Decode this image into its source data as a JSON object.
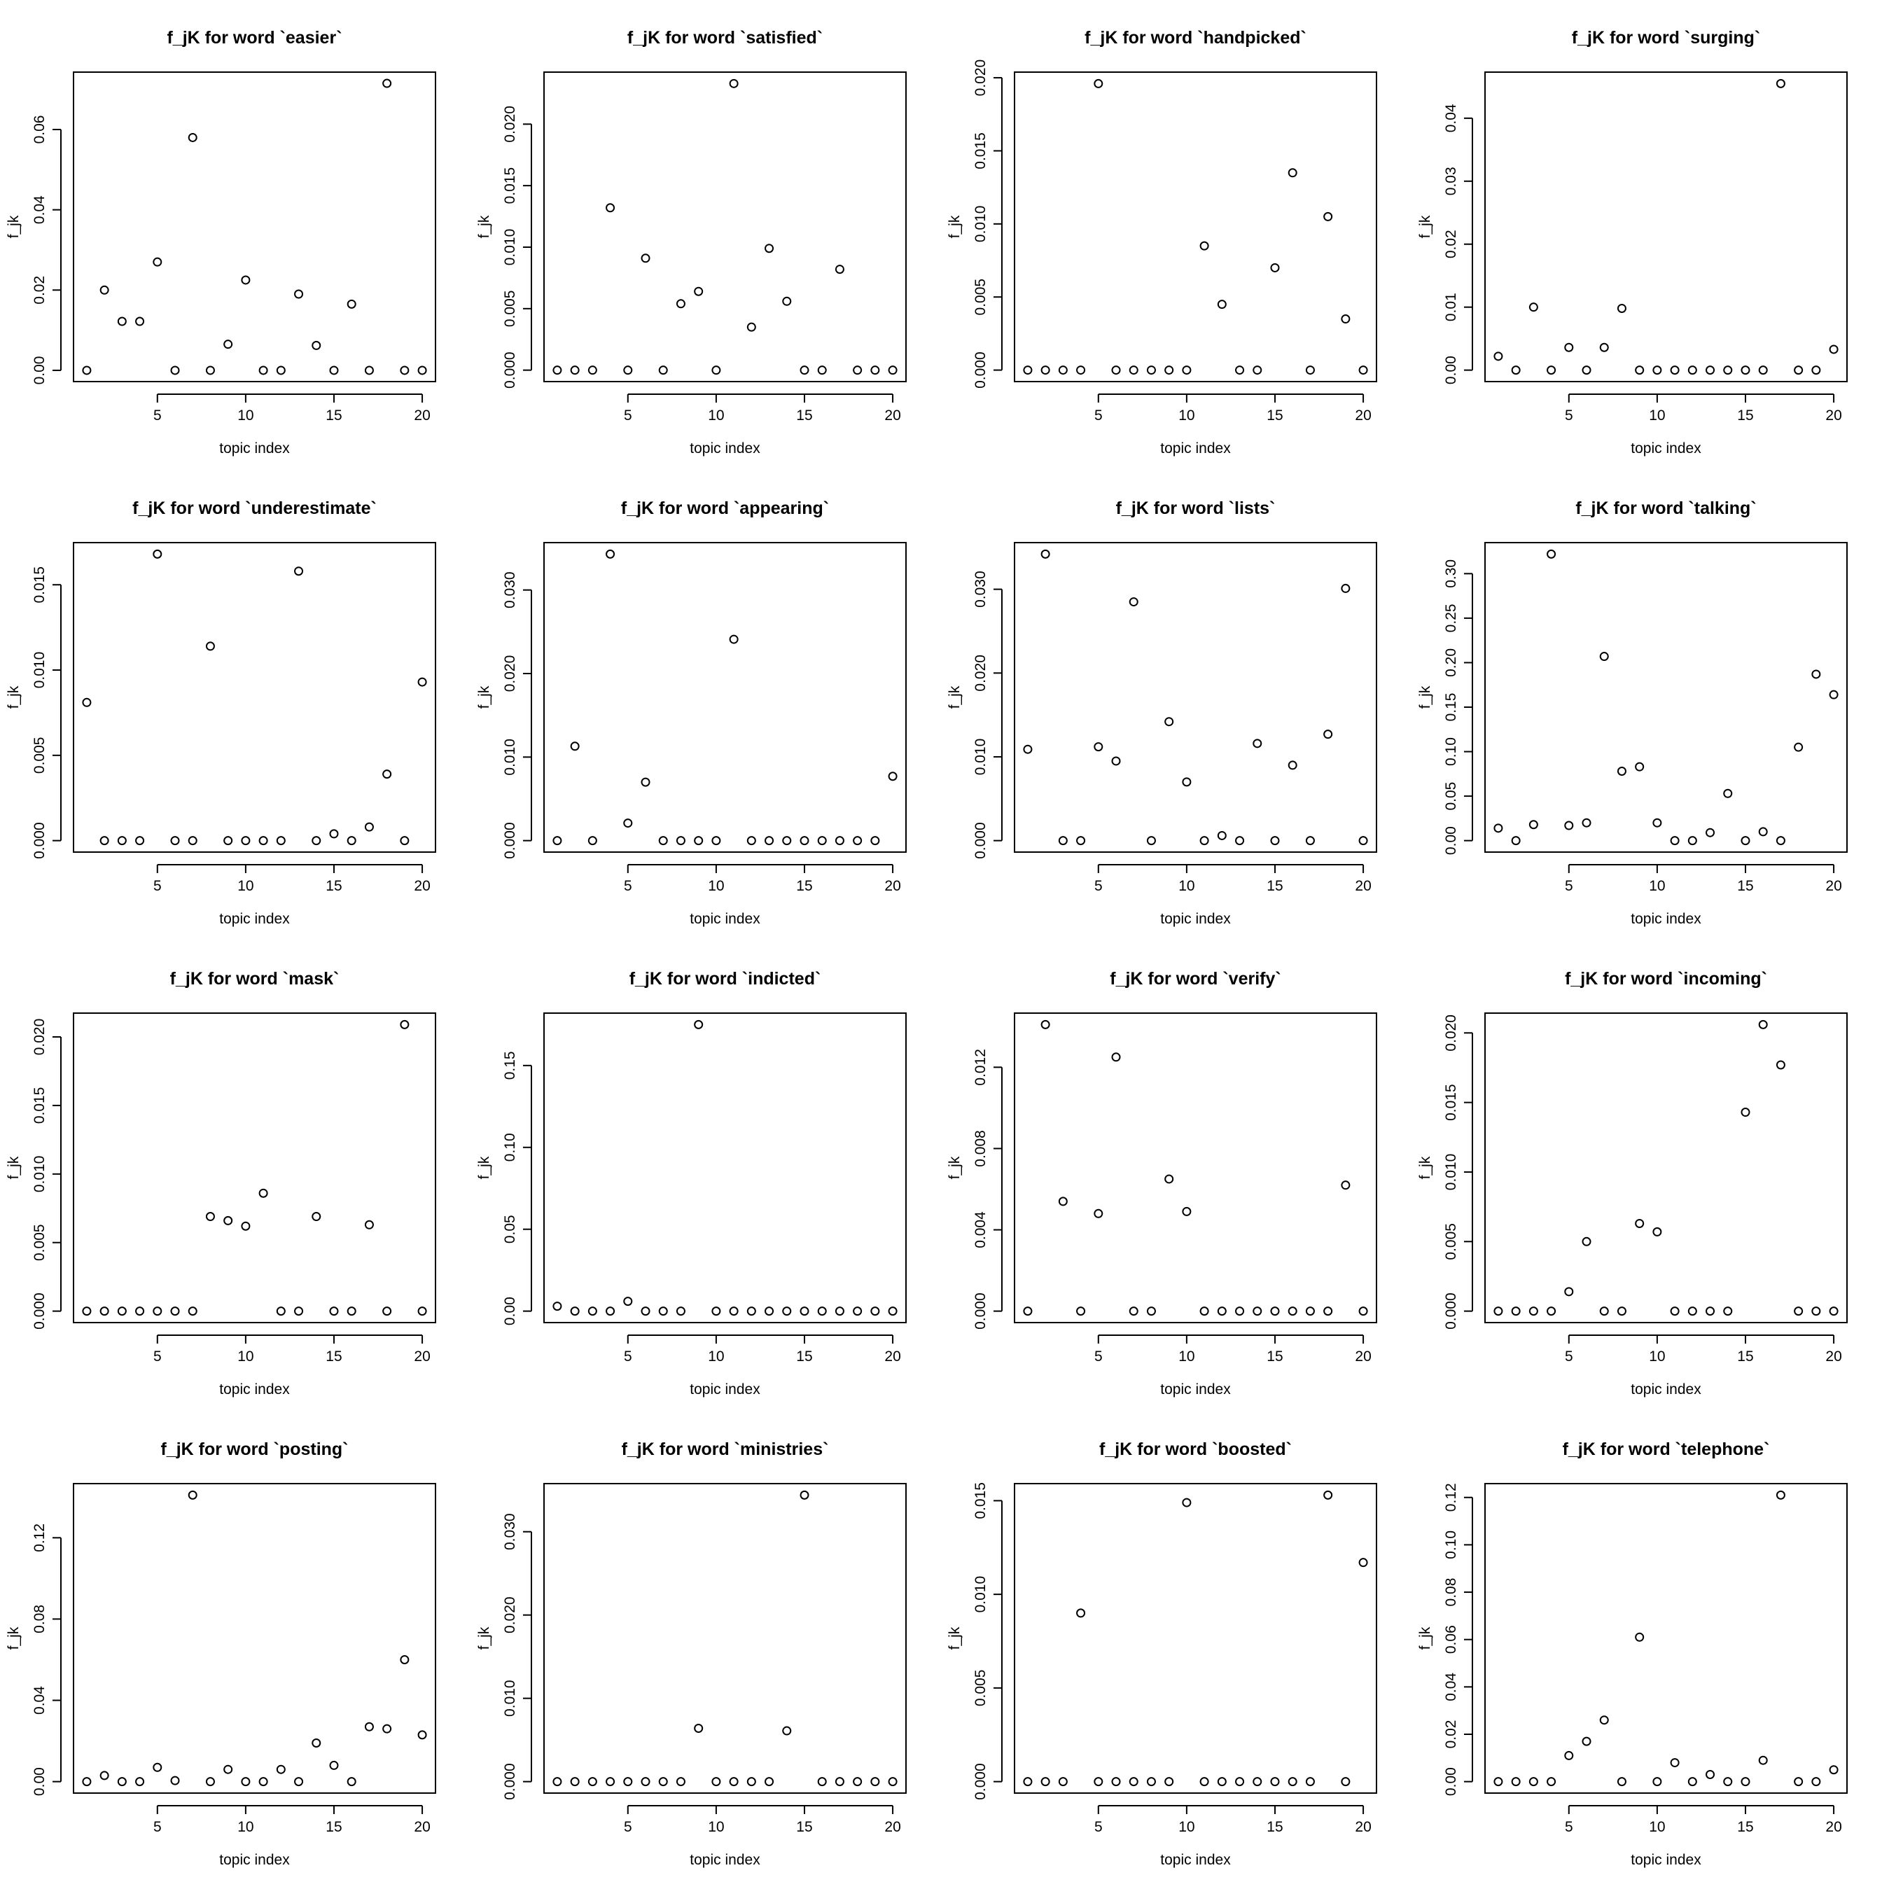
{
  "chart_data": [
    {
      "type": "scatter",
      "title": "f_jK for word `easier`",
      "xlabel": "topic index",
      "ylabel": "f_jk",
      "x": [
        1,
        2,
        3,
        4,
        5,
        6,
        7,
        8,
        9,
        10,
        11,
        12,
        13,
        14,
        15,
        16,
        17,
        18,
        19,
        20
      ],
      "y": [
        0,
        0.02,
        0.0122,
        0.0122,
        0.027,
        0,
        0.058,
        0,
        0.0065,
        0.0225,
        0,
        0,
        0.019,
        0.0062,
        0,
        0.0165,
        0,
        0.0715,
        0,
        0
      ],
      "xlim": [
        0.25,
        20.75
      ],
      "ylim": [
        -0.0028,
        0.0743
      ],
      "xticks": [
        5,
        10,
        15,
        20
      ],
      "yticks": [
        0.0,
        0.02,
        0.04,
        0.06
      ],
      "ytick_labels": [
        "0.00",
        "0.02",
        "0.04",
        "0.06"
      ]
    },
    {
      "type": "scatter",
      "title": "f_jK for word `satisfied`",
      "xlabel": "topic index",
      "ylabel": "f_jk",
      "x": [
        1,
        2,
        3,
        4,
        5,
        6,
        7,
        8,
        9,
        10,
        11,
        12,
        13,
        14,
        15,
        16,
        17,
        18,
        19,
        20
      ],
      "y": [
        0,
        0,
        0,
        0.0132,
        0,
        0.0091,
        0,
        0.0054,
        0.0064,
        0,
        0.0233,
        0.0035,
        0.0099,
        0.0056,
        0,
        0,
        0.0082,
        0,
        0,
        0
      ],
      "xlim": [
        0.25,
        20.75
      ],
      "ylim": [
        -0.00093,
        0.02423
      ],
      "xticks": [
        5,
        10,
        15,
        20
      ],
      "yticks": [
        0,
        0.005,
        0.01,
        0.015,
        0.02
      ],
      "ytick_labels": [
        "0.000",
        "0.005",
        "0.010",
        "0.015",
        "0.020"
      ]
    },
    {
      "type": "scatter",
      "title": "f_jK for word `handpicked`",
      "xlabel": "topic index",
      "ylabel": "f_jk",
      "x": [
        1,
        2,
        3,
        4,
        5,
        6,
        7,
        8,
        9,
        10,
        11,
        12,
        13,
        14,
        15,
        16,
        17,
        18,
        19,
        20
      ],
      "y": [
        0,
        0,
        0,
        0,
        0.0196,
        0,
        0,
        0,
        0,
        0,
        0.0085,
        0.0045,
        0,
        0,
        0.007,
        0.0135,
        0,
        0.0105,
        0.0035,
        0
      ],
      "xlim": [
        0.25,
        20.75
      ],
      "ylim": [
        -0.000786,
        0.020386
      ],
      "xticks": [
        5,
        10,
        15,
        20
      ],
      "yticks": [
        0,
        0.005,
        0.01,
        0.015,
        0.02
      ],
      "ytick_labels": [
        "0.000",
        "0.005",
        "0.010",
        "0.015",
        "0.020"
      ]
    },
    {
      "type": "scatter",
      "title": "f_jK for word `surging`",
      "xlabel": "topic index",
      "ylabel": "f_jk",
      "x": [
        1,
        2,
        3,
        4,
        5,
        6,
        7,
        8,
        9,
        10,
        11,
        12,
        13,
        14,
        15,
        16,
        17,
        18,
        19,
        20
      ],
      "y": [
        0.0022,
        0,
        0.01,
        0,
        0.0036,
        0,
        0.0036,
        0.0098,
        0,
        0,
        0,
        0,
        0,
        0,
        0,
        0,
        0.0455,
        0,
        0,
        0.0033
      ],
      "xlim": [
        0.25,
        20.75
      ],
      "ylim": [
        -0.00182,
        0.04732
      ],
      "xticks": [
        5,
        10,
        15,
        20
      ],
      "yticks": [
        0,
        0.01,
        0.02,
        0.03,
        0.04
      ],
      "ytick_labels": [
        "0.00",
        "0.01",
        "0.02",
        "0.03",
        "0.04"
      ]
    },
    {
      "type": "scatter",
      "title": "f_jK for word `underestimate`",
      "xlabel": "topic index",
      "ylabel": "f_jk",
      "x": [
        1,
        2,
        3,
        4,
        5,
        6,
        7,
        8,
        9,
        10,
        11,
        12,
        13,
        14,
        15,
        16,
        17,
        18,
        19,
        20
      ],
      "y": [
        0.0081,
        0,
        0,
        0,
        0.0168,
        0,
        0,
        0.0114,
        0,
        0,
        0,
        0,
        0.0158,
        0,
        0.0004,
        0,
        0.0008,
        0.0039,
        0,
        0.0093
      ],
      "xlim": [
        0.25,
        20.75
      ],
      "ylim": [
        -0.000672,
        0.017472
      ],
      "xticks": [
        5,
        10,
        15,
        20
      ],
      "yticks": [
        0,
        0.005,
        0.01,
        0.015
      ],
      "ytick_labels": [
        "0.000",
        "0.005",
        "0.010",
        "0.015"
      ]
    },
    {
      "type": "scatter",
      "title": "f_jK for word `appearing`",
      "xlabel": "topic index",
      "ylabel": "f_jk",
      "x": [
        1,
        2,
        3,
        4,
        5,
        6,
        7,
        8,
        9,
        10,
        11,
        12,
        13,
        14,
        15,
        16,
        17,
        18,
        19,
        20
      ],
      "y": [
        0,
        0.0113,
        0,
        0.0343,
        0.0021,
        0.007,
        0,
        0,
        0,
        0,
        0.0241,
        0,
        0,
        0,
        0,
        0,
        0,
        0,
        0,
        0.0077
      ],
      "xlim": [
        0.25,
        20.75
      ],
      "ylim": [
        -0.001372,
        0.035672
      ],
      "xticks": [
        5,
        10,
        15,
        20
      ],
      "yticks": [
        0,
        0.01,
        0.02,
        0.03
      ],
      "ytick_labels": [
        "0.000",
        "0.010",
        "0.020",
        "0.030"
      ]
    },
    {
      "type": "scatter",
      "title": "f_jK for word `lists`",
      "xlabel": "topic index",
      "ylabel": "f_jk",
      "x": [
        1,
        2,
        3,
        4,
        5,
        6,
        7,
        8,
        9,
        10,
        11,
        12,
        13,
        14,
        15,
        16,
        17,
        18,
        19,
        20
      ],
      "y": [
        0.0109,
        0.0342,
        0,
        0,
        0.0112,
        0.0095,
        0.0285,
        0,
        0.0142,
        0.007,
        0,
        0.0006,
        0,
        0.0116,
        0,
        0.009,
        0,
        0.0127,
        0.0301,
        0
      ],
      "xlim": [
        0.25,
        20.75
      ],
      "ylim": [
        -0.001368,
        0.035568
      ],
      "xticks": [
        5,
        10,
        15,
        20
      ],
      "yticks": [
        0,
        0.01,
        0.02,
        0.03
      ],
      "ytick_labels": [
        "0.000",
        "0.010",
        "0.020",
        "0.030"
      ]
    },
    {
      "type": "scatter",
      "title": "f_jK for word `talking`",
      "xlabel": "topic index",
      "ylabel": "f_jk",
      "x": [
        1,
        2,
        3,
        4,
        5,
        6,
        7,
        8,
        9,
        10,
        11,
        12,
        13,
        14,
        15,
        16,
        17,
        18,
        19,
        20
      ],
      "y": [
        0.014,
        0,
        0.018,
        0.322,
        0.017,
        0.02,
        0.207,
        0.078,
        0.083,
        0.02,
        0,
        0,
        0.009,
        0.053,
        0,
        0.01,
        0,
        0.105,
        0.187,
        0.164
      ],
      "xlim": [
        0.25,
        20.75
      ],
      "ylim": [
        -0.01288,
        0.33488
      ],
      "xticks": [
        5,
        10,
        15,
        20
      ],
      "yticks": [
        0,
        0.05,
        0.1,
        0.15,
        0.2,
        0.25,
        0.3
      ],
      "ytick_labels": [
        "0.00",
        "0.05",
        "0.10",
        "0.15",
        "0.20",
        "0.25",
        "0.30"
      ]
    },
    {
      "type": "scatter",
      "title": "f_jK for word `mask`",
      "xlabel": "topic index",
      "ylabel": "f_jk",
      "x": [
        1,
        2,
        3,
        4,
        5,
        6,
        7,
        8,
        9,
        10,
        11,
        12,
        13,
        14,
        15,
        16,
        17,
        18,
        19,
        20
      ],
      "y": [
        0,
        0,
        0,
        0,
        0,
        0,
        0,
        0.0069,
        0.0066,
        0.0062,
        0.0086,
        0,
        0,
        0.0069,
        0,
        0,
        0.0063,
        0,
        0.0209,
        0
      ],
      "xlim": [
        0.25,
        20.75
      ],
      "ylim": [
        -0.000836,
        0.021736
      ],
      "xticks": [
        5,
        10,
        15,
        20
      ],
      "yticks": [
        0,
        0.005,
        0.01,
        0.015,
        0.02
      ],
      "ytick_labels": [
        "0.000",
        "0.005",
        "0.010",
        "0.015",
        "0.020"
      ]
    },
    {
      "type": "scatter",
      "title": "f_jK for word `indicted`",
      "xlabel": "topic index",
      "ylabel": "f_jk",
      "x": [
        1,
        2,
        3,
        4,
        5,
        6,
        7,
        8,
        9,
        10,
        11,
        12,
        13,
        14,
        15,
        16,
        17,
        18,
        19,
        20
      ],
      "y": [
        0.003,
        0,
        0,
        0,
        0.006,
        0,
        0,
        0,
        0.175,
        0,
        0,
        0,
        0,
        0,
        0,
        0,
        0,
        0,
        0,
        0
      ],
      "xlim": [
        0.25,
        20.75
      ],
      "ylim": [
        -0.007,
        0.182
      ],
      "xticks": [
        5,
        10,
        15,
        20
      ],
      "yticks": [
        0,
        0.05,
        0.1,
        0.15
      ],
      "ytick_labels": [
        "0.00",
        "0.05",
        "0.10",
        "0.15"
      ]
    },
    {
      "type": "scatter",
      "title": "f_jK for word `verify`",
      "xlabel": "topic index",
      "ylabel": "f_jk",
      "x": [
        1,
        2,
        3,
        4,
        5,
        6,
        7,
        8,
        9,
        10,
        11,
        12,
        13,
        14,
        15,
        16,
        17,
        18,
        19,
        20
      ],
      "y": [
        0,
        0.0141,
        0.0054,
        0,
        0.0048,
        0.0125,
        0,
        0,
        0.0065,
        0.0049,
        0,
        0,
        0,
        0,
        0,
        0,
        0,
        0,
        0.0062,
        0
      ],
      "xlim": [
        0.25,
        20.75
      ],
      "ylim": [
        -0.000564,
        0.014664
      ],
      "xticks": [
        5,
        10,
        15,
        20
      ],
      "yticks": [
        0,
        0.004,
        0.008,
        0.012
      ],
      "ytick_labels": [
        "0.000",
        "0.004",
        "0.008",
        "0.012"
      ]
    },
    {
      "type": "scatter",
      "title": "f_jK for word `incoming`",
      "xlabel": "topic index",
      "ylabel": "f_jk",
      "x": [
        1,
        2,
        3,
        4,
        5,
        6,
        7,
        8,
        9,
        10,
        11,
        12,
        13,
        14,
        15,
        16,
        17,
        18,
        19,
        20
      ],
      "y": [
        0,
        0,
        0,
        0,
        0.0014,
        0.005,
        0,
        0,
        0.0063,
        0.0057,
        0,
        0,
        0,
        0,
        0.0143,
        0.0206,
        0.0177,
        0,
        0,
        0
      ],
      "xlim": [
        0.25,
        20.75
      ],
      "ylim": [
        -0.000824,
        0.021424
      ],
      "xticks": [
        5,
        10,
        15,
        20
      ],
      "yticks": [
        0,
        0.005,
        0.01,
        0.015,
        0.02
      ],
      "ytick_labels": [
        "0.000",
        "0.005",
        "0.010",
        "0.015",
        "0.020"
      ]
    },
    {
      "type": "scatter",
      "title": "f_jK for word `posting`",
      "xlabel": "topic index",
      "ylabel": "f_jk",
      "x": [
        1,
        2,
        3,
        4,
        5,
        6,
        7,
        8,
        9,
        10,
        11,
        12,
        13,
        14,
        15,
        16,
        17,
        18,
        19,
        20
      ],
      "y": [
        0,
        0.003,
        0,
        0,
        0.007,
        0.0005,
        0.141,
        0,
        0.006,
        0,
        0,
        0.006,
        0,
        0.019,
        0.008,
        0,
        0.027,
        0.026,
        0.06,
        0.023
      ],
      "xlim": [
        0.25,
        20.75
      ],
      "ylim": [
        -0.00564,
        0.14664
      ],
      "xticks": [
        5,
        10,
        15,
        20
      ],
      "yticks": [
        0,
        0.04,
        0.08,
        0.12
      ],
      "ytick_labels": [
        "0.00",
        "0.04",
        "0.08",
        "0.12"
      ]
    },
    {
      "type": "scatter",
      "title": "f_jK for word `ministries`",
      "xlabel": "topic index",
      "ylabel": "f_jk",
      "x": [
        1,
        2,
        3,
        4,
        5,
        6,
        7,
        8,
        9,
        10,
        11,
        12,
        13,
        14,
        15,
        16,
        17,
        18,
        19,
        20
      ],
      "y": [
        0,
        0,
        0,
        0,
        0,
        0,
        0,
        0,
        0.0064,
        0,
        0,
        0,
        0,
        0.0061,
        0.0344,
        0,
        0,
        0,
        0,
        0
      ],
      "xlim": [
        0.25,
        20.75
      ],
      "ylim": [
        -0.001376,
        0.035776
      ],
      "xticks": [
        5,
        10,
        15,
        20
      ],
      "yticks": [
        0,
        0.01,
        0.02,
        0.03
      ],
      "ytick_labels": [
        "0.000",
        "0.010",
        "0.020",
        "0.030"
      ]
    },
    {
      "type": "scatter",
      "title": "f_jK for word `boosted`",
      "xlabel": "topic index",
      "ylabel": "f_jk",
      "x": [
        1,
        2,
        3,
        4,
        5,
        6,
        7,
        8,
        9,
        10,
        11,
        12,
        13,
        14,
        15,
        16,
        17,
        18,
        19,
        20
      ],
      "y": [
        0,
        0,
        0,
        0.009,
        0,
        0,
        0,
        0,
        0,
        0.0149,
        0,
        0,
        0,
        0,
        0,
        0,
        0,
        0.0153,
        0,
        0.0117
      ],
      "xlim": [
        0.25,
        20.75
      ],
      "ylim": [
        -0.000612,
        0.015912
      ],
      "xticks": [
        5,
        10,
        15,
        20
      ],
      "yticks": [
        0,
        0.005,
        0.01,
        0.015
      ],
      "ytick_labels": [
        "0.000",
        "0.005",
        "0.010",
        "0.015"
      ]
    },
    {
      "type": "scatter",
      "title": "f_jK for word `telephone`",
      "xlabel": "topic index",
      "ylabel": "f_jk",
      "x": [
        1,
        2,
        3,
        4,
        5,
        6,
        7,
        8,
        9,
        10,
        11,
        12,
        13,
        14,
        15,
        16,
        17,
        18,
        19,
        20
      ],
      "y": [
        0,
        0,
        0,
        0,
        0.011,
        0.017,
        0.026,
        0,
        0.061,
        0,
        0.008,
        0,
        0.003,
        0,
        0,
        0.009,
        0.121,
        0,
        0,
        0.005
      ],
      "xlim": [
        0.25,
        20.75
      ],
      "ylim": [
        -0.00484,
        0.12584
      ],
      "xticks": [
        5,
        10,
        15,
        20
      ],
      "yticks": [
        0,
        0.02,
        0.04,
        0.06,
        0.08,
        0.1,
        0.12
      ],
      "ytick_labels": [
        "0.00",
        "0.02",
        "0.04",
        "0.06",
        "0.08",
        "0.10",
        "0.12"
      ]
    }
  ]
}
